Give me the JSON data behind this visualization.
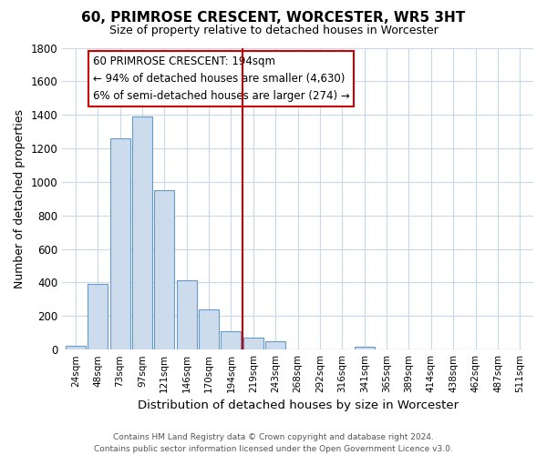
{
  "title": "60, PRIMROSE CRESCENT, WORCESTER, WR5 3HT",
  "subtitle": "Size of property relative to detached houses in Worcester",
  "xlabel": "Distribution of detached houses by size in Worcester",
  "ylabel": "Number of detached properties",
  "bar_labels": [
    "24sqm",
    "48sqm",
    "73sqm",
    "97sqm",
    "121sqm",
    "146sqm",
    "170sqm",
    "194sqm",
    "219sqm",
    "243sqm",
    "268sqm",
    "292sqm",
    "316sqm",
    "341sqm",
    "365sqm",
    "389sqm",
    "414sqm",
    "438sqm",
    "462sqm",
    "487sqm",
    "511sqm"
  ],
  "bar_values": [
    25,
    390,
    1260,
    1390,
    950,
    415,
    240,
    110,
    70,
    50,
    0,
    0,
    0,
    15,
    0,
    0,
    0,
    0,
    0,
    0,
    0
  ],
  "bar_color": "#ccdcec",
  "bar_edge_color": "#6699cc",
  "highlight_index": 7,
  "highlight_line_color": "#cc0000",
  "ylim": [
    0,
    1800
  ],
  "yticks": [
    0,
    200,
    400,
    600,
    800,
    1000,
    1200,
    1400,
    1600,
    1800
  ],
  "annotation_title": "60 PRIMROSE CRESCENT: 194sqm",
  "annotation_line1": "← 94% of detached houses are smaller (4,630)",
  "annotation_line2": "6% of semi-detached houses are larger (274) →",
  "footer_line1": "Contains HM Land Registry data © Crown copyright and database right 2024.",
  "footer_line2": "Contains public sector information licensed under the Open Government Licence v3.0.",
  "background_color": "#ffffff",
  "grid_color": "#c8d8e8"
}
